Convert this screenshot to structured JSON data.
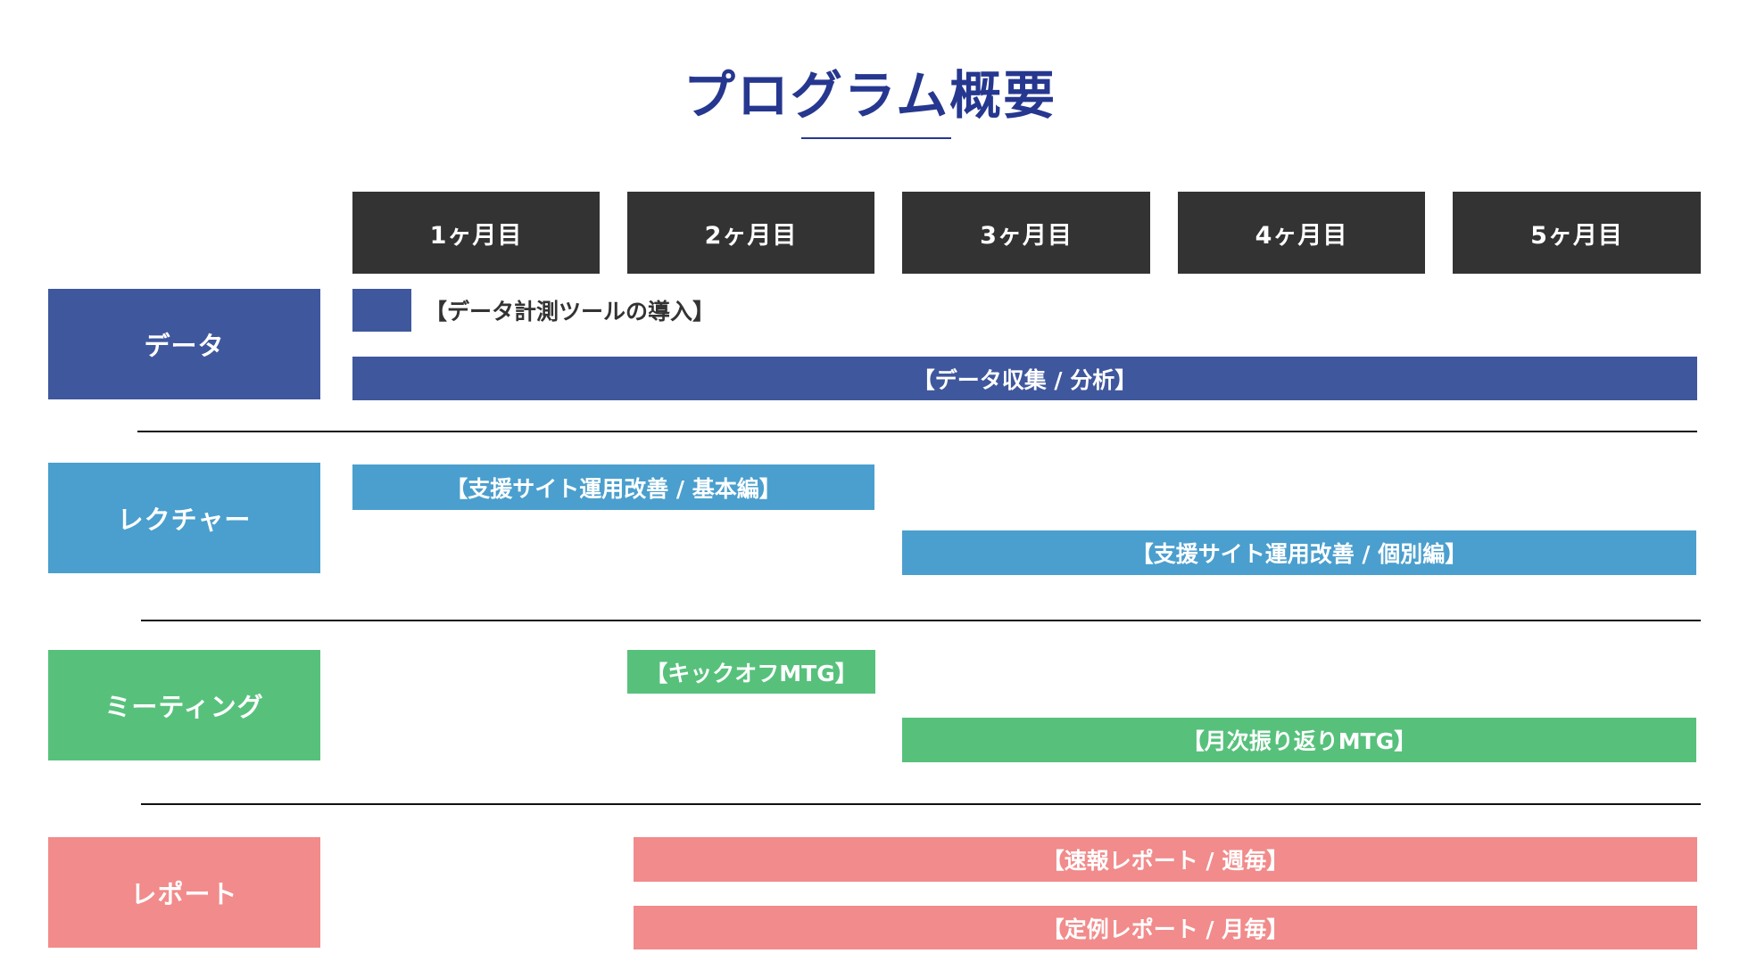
{
  "title": "プログラム概要",
  "colors": {
    "title": "#26378f",
    "month_header_bg": "#333333",
    "data": "#3f579d",
    "lecture": "#4a9fce",
    "meeting": "#57c17c",
    "report": "#f28b8b"
  },
  "months": [
    "1ヶ月目",
    "2ヶ月目",
    "3ヶ月目",
    "4ヶ月目",
    "5ヶ月目"
  ],
  "categories": [
    {
      "label": "データ"
    },
    {
      "label": "レクチャー"
    },
    {
      "label": "ミーティング"
    },
    {
      "label": "レポート"
    }
  ],
  "tasks": {
    "data_tool": "【データ計測ツールの導入】",
    "data_collect": "【データ収集 / 分析】",
    "lecture_basic": "【支援サイト運用改善 / 基本編】",
    "lecture_individual": "【支援サイト運用改善 / 個別編】",
    "meeting_kickoff": "【キックオフMTG】",
    "meeting_monthly": "【月次振り返りMTG】",
    "report_weekly": "【速報レポート / 週毎】",
    "report_monthly": "【定例レポート / 月毎】"
  }
}
